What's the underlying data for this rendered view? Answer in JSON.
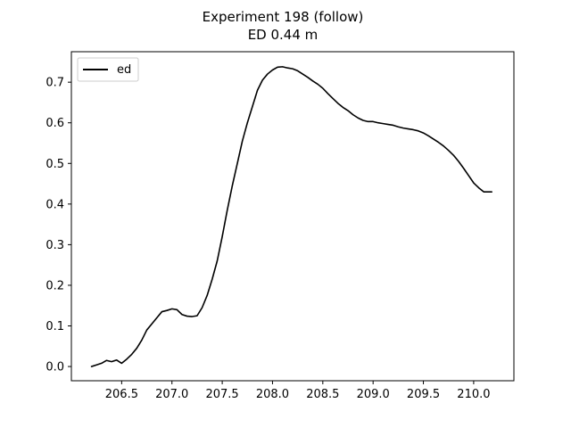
{
  "chart_data": {
    "type": "line",
    "title": "Experiment 198 (follow)",
    "subtitle": "ED 0.44 m",
    "xlabel": "",
    "ylabel": "",
    "xlim": [
      206.0,
      210.4
    ],
    "ylim": [
      -0.035,
      0.775
    ],
    "x_ticks": [
      206.5,
      207.0,
      207.5,
      208.0,
      208.5,
      209.0,
      209.5,
      210.0
    ],
    "x_tick_labels": [
      "206.5",
      "207.0",
      "207.5",
      "208.0",
      "208.5",
      "209.0",
      "209.5",
      "210.0"
    ],
    "y_ticks": [
      0.0,
      0.1,
      0.2,
      0.3,
      0.4,
      0.5,
      0.6,
      0.7
    ],
    "y_tick_labels": [
      "0.0",
      "0.1",
      "0.2",
      "0.3",
      "0.4",
      "0.5",
      "0.6",
      "0.7"
    ],
    "grid": false,
    "legend": {
      "position": "top-left"
    },
    "series": [
      {
        "name": "ed",
        "color": "#000000",
        "x": [
          206.2,
          206.25,
          206.3,
          206.35,
          206.4,
          206.45,
          206.5,
          206.55,
          206.6,
          206.65,
          206.7,
          206.75,
          206.8,
          206.85,
          206.9,
          206.95,
          207.0,
          207.05,
          207.1,
          207.15,
          207.2,
          207.25,
          207.3,
          207.35,
          207.4,
          207.45,
          207.5,
          207.55,
          207.6,
          207.65,
          207.7,
          207.75,
          207.8,
          207.85,
          207.9,
          207.95,
          208.0,
          208.05,
          208.1,
          208.15,
          208.2,
          208.25,
          208.3,
          208.35,
          208.4,
          208.45,
          208.5,
          208.55,
          208.6,
          208.65,
          208.7,
          208.75,
          208.8,
          208.85,
          208.9,
          208.95,
          209.0,
          209.05,
          209.1,
          209.15,
          209.2,
          209.25,
          209.3,
          209.35,
          209.4,
          209.45,
          209.5,
          209.55,
          209.6,
          209.65,
          209.7,
          209.75,
          209.8,
          209.85,
          209.9,
          209.95,
          210.0,
          210.05,
          210.1,
          210.15,
          210.18
        ],
        "y": [
          0.0,
          0.004,
          0.008,
          0.015,
          0.012,
          0.016,
          0.008,
          0.018,
          0.03,
          0.045,
          0.065,
          0.09,
          0.105,
          0.12,
          0.135,
          0.138,
          0.142,
          0.14,
          0.128,
          0.124,
          0.123,
          0.125,
          0.145,
          0.175,
          0.215,
          0.26,
          0.32,
          0.385,
          0.445,
          0.5,
          0.555,
          0.6,
          0.64,
          0.68,
          0.705,
          0.72,
          0.73,
          0.737,
          0.738,
          0.735,
          0.733,
          0.728,
          0.72,
          0.712,
          0.703,
          0.695,
          0.685,
          0.672,
          0.66,
          0.648,
          0.638,
          0.63,
          0.62,
          0.612,
          0.606,
          0.603,
          0.603,
          0.6,
          0.598,
          0.596,
          0.594,
          0.59,
          0.587,
          0.585,
          0.583,
          0.58,
          0.575,
          0.568,
          0.56,
          0.552,
          0.543,
          0.532,
          0.52,
          0.505,
          0.488,
          0.47,
          0.452,
          0.44,
          0.43,
          0.43,
          0.43
        ]
      }
    ]
  }
}
